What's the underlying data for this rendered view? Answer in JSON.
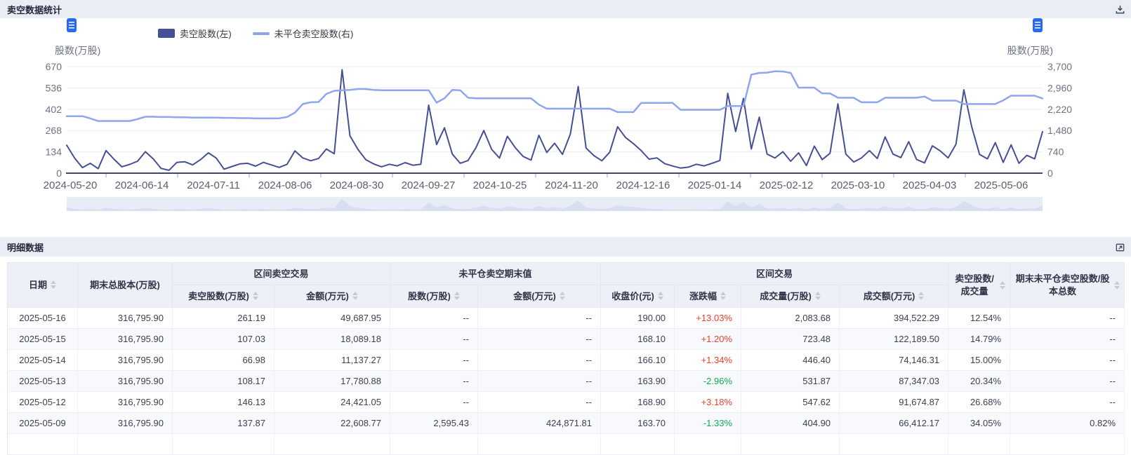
{
  "panels": {
    "chart": {
      "title": "卖空数据统计"
    },
    "table": {
      "title": "明细数据"
    }
  },
  "icons": {
    "chart_panel_action": "download-icon",
    "table_panel_action": "export-icon"
  },
  "legend": {
    "items": [
      {
        "label": "卖空股数(左)"
      },
      {
        "label": "未平仓卖空股数(右)"
      }
    ]
  },
  "chart_data": {
    "type": "line",
    "title": "卖空数据统计",
    "grid": true,
    "legend_position": "top-left",
    "x_labels": [
      "2024-05-20",
      "2024-06-14",
      "2024-07-11",
      "2024-08-06",
      "2024-08-30",
      "2024-09-27",
      "2024-10-25",
      "2024-11-20",
      "2024-12-16",
      "2025-01-14",
      "2025-02-12",
      "2025-03-10",
      "2025-04-03",
      "2025-05-06"
    ],
    "left_axis": {
      "name": "股数(万股)",
      "max": 670,
      "ticks": [
        "670",
        "536",
        "402",
        "268",
        "134",
        "0"
      ]
    },
    "right_axis": {
      "name": "股数(万股)",
      "max": 3700,
      "ticks": [
        "3,700",
        "2,960",
        "2,220",
        "1,480",
        "740",
        "0"
      ]
    },
    "series": [
      {
        "name": "卖空股数(左)",
        "axis": "left",
        "color": "#474f94",
        "values": [
          176,
          95,
          35,
          62,
          28,
          142,
          88,
          40,
          55,
          75,
          135,
          90,
          30,
          18,
          68,
          72,
          52,
          85,
          128,
          95,
          25,
          42,
          58,
          62,
          44,
          68,
          52,
          36,
          56,
          140,
          96,
          78,
          92,
          152,
          122,
          650,
          235,
          150,
          85,
          58,
          40,
          56,
          46,
          66,
          50,
          56,
          428,
          180,
          285,
          120,
          62,
          80,
          160,
          268,
          150,
          95,
          232,
          160,
          105,
          82,
          238,
          130,
          188,
          118,
          246,
          545,
          158,
          110,
          78,
          132,
          292,
          225,
          186,
          142,
          88,
          96,
          60,
          45,
          32,
          38,
          56,
          46,
          62,
          80,
          502,
          262,
          470,
          152,
          352,
          120,
          95,
          135,
          75,
          128,
          48,
          170,
          85,
          125,
          436,
          120,
          70,
          96,
          142,
          92,
          228,
          120,
          98,
          198,
          86,
          65,
          172,
          140,
          96,
          182,
          524,
          292,
          118,
          90,
          192,
          68,
          178,
          62,
          112,
          90,
          261
        ]
      },
      {
        "name": "未平仓卖空股数(右)",
        "axis": "right",
        "color": "#8ea6ee",
        "values": [
          1980,
          1980,
          1980,
          1900,
          1810,
          1810,
          1810,
          1810,
          1810,
          1880,
          1960,
          1960,
          1950,
          1950,
          1940,
          1940,
          1930,
          1930,
          1930,
          1930,
          1920,
          1920,
          1910,
          1910,
          1900,
          1900,
          1900,
          1905,
          1950,
          2100,
          2400,
          2460,
          2470,
          2750,
          2860,
          2880,
          2890,
          2920,
          2920,
          2890,
          2880,
          2880,
          2880,
          2880,
          2880,
          2880,
          2880,
          2450,
          2600,
          2890,
          2880,
          2620,
          2600,
          2600,
          2600,
          2600,
          2600,
          2600,
          2600,
          2600,
          2380,
          2240,
          2240,
          2240,
          2240,
          2240,
          2240,
          2240,
          2240,
          2240,
          2120,
          2120,
          2120,
          2440,
          2440,
          2440,
          2440,
          2440,
          2200,
          2200,
          2200,
          2200,
          2200,
          2200,
          2330,
          2330,
          2330,
          3420,
          3480,
          3490,
          3540,
          3530,
          3480,
          2970,
          2970,
          2970,
          2770,
          2770,
          2620,
          2620,
          2620,
          2460,
          2460,
          2460,
          2620,
          2620,
          2620,
          2620,
          2620,
          2660,
          2520,
          2520,
          2520,
          2520,
          2400,
          2400,
          2400,
          2400,
          2400,
          2530,
          2690,
          2690,
          2690,
          2690,
          2595
        ]
      }
    ]
  },
  "table": {
    "header_groups": [
      {
        "label": "区间卖空交易",
        "span": 2
      },
      {
        "label": "未平仓卖空期末值",
        "span": 2
      },
      {
        "label": "区间交易",
        "span": 4
      }
    ],
    "columns": [
      {
        "label": "日期",
        "sortable": true,
        "align": "center"
      },
      {
        "label": "期末总股本(万股)",
        "sortable": false,
        "align": "right"
      },
      {
        "label": "卖空股数(万股)",
        "sortable": true,
        "align": "right",
        "group": 0
      },
      {
        "label": "金额(万元)",
        "sortable": true,
        "align": "right",
        "group": 0
      },
      {
        "label": "股数(万股)",
        "sortable": true,
        "align": "right",
        "group": 1
      },
      {
        "label": "金额(万元)",
        "sortable": true,
        "align": "right",
        "group": 1
      },
      {
        "label": "收盘价(元)",
        "sortable": true,
        "align": "right",
        "group": 2
      },
      {
        "label": "涨跌幅",
        "sortable": true,
        "align": "right",
        "group": 2
      },
      {
        "label": "成交量(万股)",
        "sortable": true,
        "align": "right",
        "group": 2
      },
      {
        "label": "成交额(万元)",
        "sortable": true,
        "align": "right",
        "group": 2
      },
      {
        "label": "卖空股数/成交量",
        "sortable": true,
        "align": "right"
      },
      {
        "label": "期末未平仓卖空股数/股本总数",
        "sortable": true,
        "align": "right"
      }
    ],
    "change_column_index": 7,
    "colors": {
      "up": "#f23d2c",
      "down": "#0eab56"
    },
    "rows": [
      [
        "2025-05-16",
        "316,795.90",
        "261.19",
        "49,687.95",
        "--",
        "--",
        "190.00",
        "+13.03%",
        "2,083.68",
        "394,522.29",
        "12.54%",
        "--"
      ],
      [
        "2025-05-15",
        "316,795.90",
        "107.03",
        "18,089.18",
        "--",
        "--",
        "168.10",
        "+1.20%",
        "723.48",
        "122,189.50",
        "14.79%",
        "--"
      ],
      [
        "2025-05-14",
        "316,795.90",
        "66.98",
        "11,137.27",
        "--",
        "--",
        "166.10",
        "+1.34%",
        "446.40",
        "74,146.31",
        "15.00%",
        "--"
      ],
      [
        "2025-05-13",
        "316,795.90",
        "108.17",
        "17,780.88",
        "--",
        "--",
        "163.90",
        "-2.96%",
        "531.87",
        "87,347.03",
        "20.34%",
        "--"
      ],
      [
        "2025-05-12",
        "316,795.90",
        "146.13",
        "24,421.05",
        "--",
        "--",
        "168.90",
        "+3.18%",
        "547.62",
        "91,674.87",
        "26.68%",
        "--"
      ],
      [
        "2025-05-09",
        "316,795.90",
        "137.87",
        "22,608.77",
        "2,595.43",
        "424,871.81",
        "163.70",
        "-1.33%",
        "404.90",
        "66,412.17",
        "34.05%",
        "0.82%"
      ]
    ]
  }
}
